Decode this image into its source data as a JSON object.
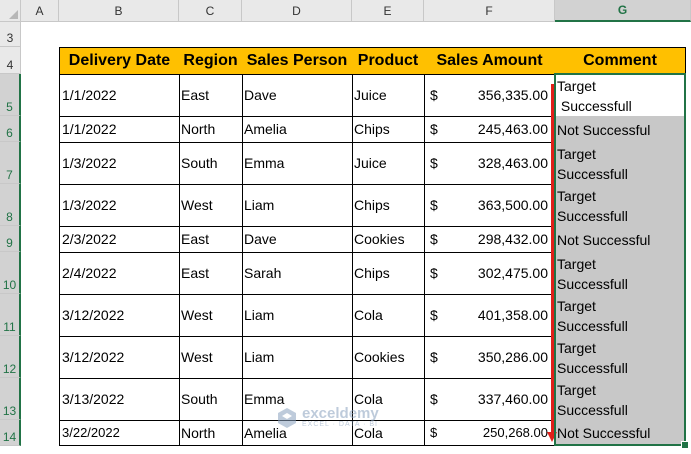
{
  "column_headers": [
    "A",
    "B",
    "C",
    "D",
    "E",
    "F",
    "G"
  ],
  "row_numbers": [
    "3",
    "4",
    "5",
    "6",
    "7",
    "8",
    "9",
    "10",
    "11",
    "12",
    "13",
    "14"
  ],
  "table": {
    "headers": [
      "Delivery Date",
      "Region",
      "Sales Person",
      "Product",
      "Sales Amount",
      "Comment"
    ],
    "currency_symbol": "$",
    "rows": [
      {
        "date": "1/1/2022",
        "region": "East",
        "person": "Dave",
        "product": "Juice",
        "amount": "356,335.00",
        "comment": "Target\n Successfull"
      },
      {
        "date": "1/1/2022",
        "region": "North",
        "person": "Amelia",
        "product": "Chips",
        "amount": "245,463.00",
        "comment": "Not Successful"
      },
      {
        "date": "1/3/2022",
        "region": "South",
        "person": "Emma",
        "product": "Juice",
        "amount": "328,463.00",
        "comment": "Target\nSuccessfull"
      },
      {
        "date": "1/3/2022",
        "region": "West",
        "person": "Liam",
        "product": "Chips",
        "amount": "363,500.00",
        "comment": "Target\nSuccessfull"
      },
      {
        "date": "2/3/2022",
        "region": "East",
        "person": "Dave",
        "product": "Cookies",
        "amount": "298,432.00",
        "comment": "Not Successful"
      },
      {
        "date": "2/4/2022",
        "region": "East",
        "person": "Sarah",
        "product": "Chips",
        "amount": "302,475.00",
        "comment": "Target\nSuccessfull"
      },
      {
        "date": "3/12/2022",
        "region": "West",
        "person": "Liam",
        "product": "Cola",
        "amount": "401,358.00",
        "comment": "Target\nSuccessfull"
      },
      {
        "date": "3/12/2022",
        "region": "West",
        "person": "Liam",
        "product": "Cookies",
        "amount": "350,286.00",
        "comment": "Target\nSuccessfull"
      },
      {
        "date": "3/13/2022",
        "region": "South",
        "person": "Emma",
        "product": "Cola",
        "amount": "337,460.00",
        "comment": "Target\nSuccessfull"
      },
      {
        "date": "3/22/2022",
        "region": "North",
        "person": "Amelia",
        "product": "Cola",
        "amount": "250,268.00",
        "comment": "Not Successful"
      }
    ]
  },
  "selected_column": "G",
  "colors": {
    "header_fill": "#ffc000",
    "comment_fill": "#c8c8c8",
    "selection": "#217346",
    "arrow": "#e0201a"
  },
  "watermark": {
    "title": "exceldemy",
    "subtitle": "EXCEL · DATA · BI",
    "icon": "exceldemy-logo-icon"
  }
}
